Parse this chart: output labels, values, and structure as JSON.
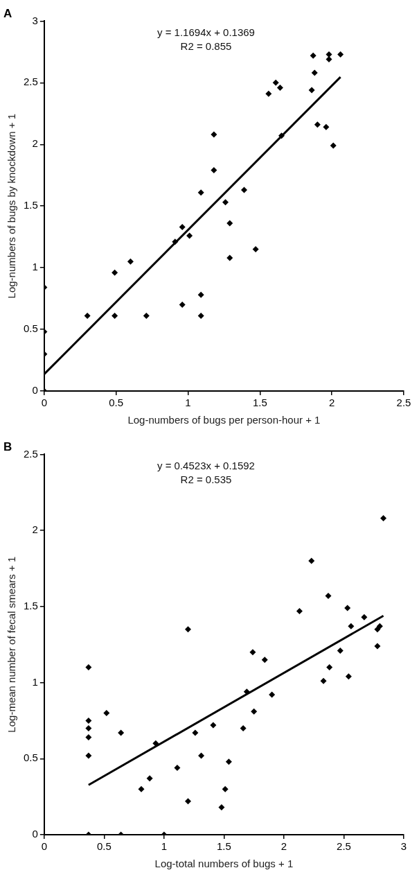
{
  "chart_data": [
    {
      "type": "scatter",
      "title": "A",
      "xlabel": "Log-numbers of bugs per person-hour + 1",
      "ylabel": "Log-numbers of bugs by knockdown + 1",
      "xlim": [
        0,
        2.5
      ],
      "xticks": [
        0,
        0.5,
        1,
        1.5,
        2,
        2.5
      ],
      "ylim": [
        0,
        3
      ],
      "yticks": [
        0,
        0.5,
        1,
        1.5,
        2,
        2.5,
        3
      ],
      "grid": false,
      "legend": false,
      "annotations": [
        "y = 1.1694x + 0.1369",
        "R2 = 0.855"
      ],
      "series": [
        {
          "color": "#000000",
          "marker": "diamond",
          "x": [
            0,
            0,
            0,
            0,
            0.3,
            0.49,
            0.49,
            0.6,
            0.71,
            0.96,
            0.96,
            0.91,
            1.01,
            1.09,
            1.09,
            1.29,
            1.29,
            1.47,
            1.18,
            1.18,
            1.09,
            1.26,
            1.39,
            1.56,
            1.61,
            1.64,
            1.65,
            1.87,
            1.88,
            1.86,
            1.98,
            1.98,
            2.06,
            1.9,
            1.96,
            2.01
          ],
          "values": [
            0.84,
            0.48,
            0.3,
            0,
            0.61,
            0.96,
            0.61,
            1.05,
            0.61,
            0.7,
            1.33,
            1.21,
            1.26,
            0.78,
            0.61,
            1.36,
            1.08,
            1.15,
            2.08,
            1.79,
            1.61,
            1.53,
            1.63,
            2.41,
            2.5,
            2.46,
            2.07,
            2.72,
            2.58,
            2.44,
            2.73,
            2.69,
            2.73,
            2.16,
            2.14,
            1.99
          ]
        },
        {
          "type": "line",
          "color": "#000000",
          "marker": "none",
          "x": [
            0,
            2.06
          ],
          "values": [
            0.137,
            2.546
          ]
        }
      ]
    },
    {
      "type": "scatter",
      "title": "B",
      "xlabel": "Log-total numbers of bugs + 1",
      "ylabel": "Log-mean number of fecal smears + 1",
      "xlim": [
        0,
        3
      ],
      "xticks": [
        0,
        0.5,
        1,
        1.5,
        2,
        2.5,
        3
      ],
      "ylim": [
        0,
        2.5
      ],
      "yticks": [
        0,
        0.5,
        1,
        1.5,
        2,
        2.5
      ],
      "grid": false,
      "legend": false,
      "annotations": [
        "y = 0.4523x + 0.1592",
        "R2 = 0.535"
      ],
      "series": [
        {
          "color": "#000000",
          "marker": "diamond",
          "x": [
            0.37,
            0.37,
            0.37,
            0.37,
            0.37,
            0.37,
            0.52,
            0.64,
            0.64,
            1.0,
            0.81,
            0.88,
            0.93,
            1.11,
            1.2,
            1.26,
            1.31,
            1.41,
            1.48,
            1.51,
            1.54,
            1.66,
            1.69,
            1.74,
            1.75,
            1.84,
            1.9,
            2.33,
            2.38,
            2.47,
            2.54,
            2.78,
            2.83,
            2.23,
            2.37,
            2.13,
            2.53,
            2.67,
            2.56,
            2.8,
            2.78,
            1.2
          ],
          "values": [
            1.1,
            0.75,
            0.7,
            0.64,
            0.52,
            0,
            0.8,
            0.67,
            0,
            0,
            0.3,
            0.37,
            0.6,
            0.44,
            0.22,
            0.67,
            0.52,
            0.72,
            0.18,
            0.3,
            0.48,
            0.7,
            0.94,
            1.2,
            0.81,
            1.15,
            0.92,
            1.01,
            1.1,
            1.21,
            1.04,
            1.24,
            2.08,
            1.8,
            1.57,
            1.47,
            1.49,
            1.43,
            1.37,
            1.37,
            1.35,
            1.35
          ]
        },
        {
          "type": "line",
          "color": "#000000",
          "marker": "none",
          "x": [
            0.37,
            2.83
          ],
          "values": [
            0.327,
            1.439
          ]
        }
      ]
    }
  ]
}
